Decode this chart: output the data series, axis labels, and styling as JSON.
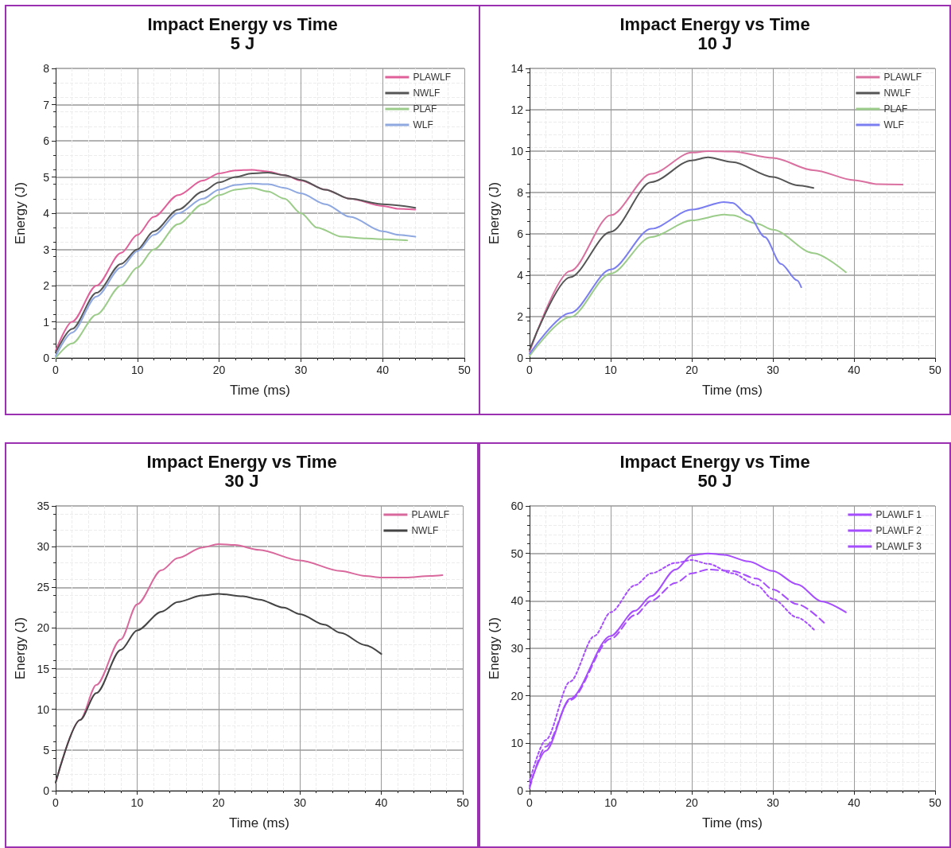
{
  "chart_data": [
    {
      "type": "line",
      "title": "Impact Energy vs Time",
      "subtitle": "5 J",
      "xlabel": "Time (ms)",
      "ylabel": "Energy (J)",
      "xlim": [
        0,
        50
      ],
      "xticks": [
        0,
        10,
        20,
        30,
        40,
        50
      ],
      "ylim": [
        0,
        8
      ],
      "yticks": [
        0,
        1,
        2,
        3,
        4,
        5,
        6,
        7,
        8
      ],
      "grid": true,
      "legend": "top right",
      "marker": "none",
      "series": [
        {
          "name": "PLAWLF",
          "color": "#e0609a",
          "x": [
            0,
            2,
            5,
            8,
            10,
            12,
            15,
            18,
            20,
            22,
            24,
            26,
            28,
            30,
            33,
            36,
            40,
            42,
            44
          ],
          "values": [
            0.2,
            1.0,
            2.0,
            2.9,
            3.4,
            3.9,
            4.5,
            4.9,
            5.1,
            5.18,
            5.2,
            5.15,
            5.05,
            4.9,
            4.65,
            4.4,
            4.2,
            4.12,
            4.1
          ]
        },
        {
          "name": "NWLF",
          "color": "#555555",
          "x": [
            0,
            2,
            5,
            8,
            10,
            12,
            15,
            18,
            20,
            22,
            24,
            26,
            28,
            30,
            33,
            36,
            40,
            44
          ],
          "values": [
            0.15,
            0.8,
            1.8,
            2.6,
            3.0,
            3.5,
            4.1,
            4.6,
            4.85,
            5.0,
            5.1,
            5.12,
            5.05,
            4.92,
            4.65,
            4.4,
            4.25,
            4.15
          ]
        },
        {
          "name": "PLAF",
          "color": "#9ccc8a",
          "x": [
            0,
            2,
            5,
            8,
            10,
            12,
            15,
            18,
            20,
            22,
            24,
            26,
            28,
            30,
            32,
            35,
            38,
            40,
            43
          ],
          "values": [
            0.0,
            0.4,
            1.2,
            2.0,
            2.5,
            3.0,
            3.7,
            4.25,
            4.5,
            4.65,
            4.7,
            4.6,
            4.4,
            4.0,
            3.6,
            3.35,
            3.3,
            3.28,
            3.25
          ]
        },
        {
          "name": "WLF",
          "color": "#8fa8e0",
          "x": [
            0,
            2,
            5,
            8,
            10,
            12,
            15,
            18,
            20,
            22,
            24,
            26,
            28,
            30,
            33,
            36,
            40,
            42,
            44
          ],
          "values": [
            0.05,
            0.7,
            1.7,
            2.5,
            2.95,
            3.4,
            4.0,
            4.4,
            4.65,
            4.78,
            4.82,
            4.8,
            4.7,
            4.55,
            4.25,
            3.9,
            3.5,
            3.4,
            3.35
          ]
        }
      ]
    },
    {
      "type": "line",
      "title": "Impact Energy vs Time",
      "subtitle": "10 J",
      "xlabel": "Time (ms)",
      "ylabel": "Energy (J)",
      "xlim": [
        0,
        50
      ],
      "xticks": [
        0,
        10,
        20,
        30,
        40,
        50
      ],
      "ylim": [
        0,
        14
      ],
      "yticks": [
        0,
        2,
        4,
        6,
        8,
        10,
        12,
        14
      ],
      "grid": true,
      "legend": "top right",
      "marker": "none",
      "series": [
        {
          "name": "PLAWLF",
          "color": "#d9709f",
          "x": [
            0,
            5,
            10,
            15,
            20,
            22,
            25,
            30,
            35,
            40,
            43,
            46
          ],
          "values": [
            0.3,
            4.2,
            6.9,
            8.9,
            9.93,
            10.0,
            9.98,
            9.67,
            9.08,
            8.6,
            8.4,
            8.38
          ]
        },
        {
          "name": "NWLF",
          "color": "#555555",
          "x": [
            0,
            5,
            10,
            15,
            20,
            22,
            25,
            30,
            33,
            35
          ],
          "values": [
            0.4,
            3.9,
            6.1,
            8.5,
            9.55,
            9.7,
            9.47,
            8.75,
            8.35,
            8.22
          ]
        },
        {
          "name": "PLAF",
          "color": "#9ccc8a",
          "x": [
            0,
            5,
            10,
            15,
            20,
            24,
            25,
            28,
            30,
            35,
            39
          ],
          "values": [
            0.1,
            1.97,
            4.08,
            5.85,
            6.65,
            6.93,
            6.9,
            6.5,
            6.2,
            5.07,
            4.14
          ]
        },
        {
          "name": "WLF",
          "color": "#7a7ef0",
          "x": [
            0,
            5,
            10,
            15,
            20,
            24,
            25,
            27,
            29,
            31,
            33,
            33.5
          ],
          "values": [
            0.2,
            2.17,
            4.28,
            6.25,
            7.17,
            7.54,
            7.5,
            6.9,
            5.85,
            4.55,
            3.75,
            3.42
          ]
        }
      ]
    },
    {
      "type": "line",
      "title": "Impact Energy vs Time",
      "subtitle": "30 J",
      "xlabel": "Time (ms)",
      "ylabel": "Energy (J)",
      "xlim": [
        0,
        50
      ],
      "xticks": [
        0,
        10,
        20,
        30,
        40,
        50
      ],
      "ylim": [
        0,
        35
      ],
      "yticks": [
        0,
        5,
        10,
        15,
        20,
        25,
        30,
        35
      ],
      "grid": true,
      "legend": "top right",
      "marker": "none",
      "series": [
        {
          "name": "PLAWLF",
          "color": "#d9689c",
          "x": [
            0,
            3,
            5,
            8,
            10,
            13,
            15,
            18,
            20,
            22,
            25,
            30,
            35,
            38,
            40,
            43,
            46,
            47.5
          ],
          "values": [
            1.0,
            8.7,
            13,
            18.6,
            22.9,
            27.1,
            28.6,
            29.9,
            30.3,
            30.2,
            29.6,
            28.3,
            27,
            26.4,
            26.2,
            26.2,
            26.4,
            26.5
          ]
        },
        {
          "name": "NWLF",
          "color": "#444444",
          "x": [
            0,
            3,
            5,
            8,
            10,
            13,
            15,
            18,
            20,
            23,
            25,
            28,
            30,
            33,
            35,
            38,
            40
          ],
          "values": [
            1.0,
            8.7,
            12,
            17.3,
            19.7,
            22,
            23.2,
            24,
            24.2,
            23.9,
            23.5,
            22.5,
            21.7,
            20.4,
            19.4,
            17.9,
            16.8
          ]
        }
      ]
    },
    {
      "type": "line",
      "title": "Impact Energy vs Time",
      "subtitle": "50 J",
      "xlabel": "Time (ms)",
      "ylabel": "Energy (J)",
      "xlim": [
        0,
        50
      ],
      "xticks": [
        0,
        10,
        20,
        30,
        40,
        50
      ],
      "ylim": [
        0,
        60
      ],
      "yticks": [
        0,
        10,
        20,
        30,
        40,
        50,
        60
      ],
      "grid": true,
      "legend": "top right",
      "marker": "none",
      "series": [
        {
          "name": "PLAWLF 1",
          "color": "#a64dff",
          "line_style": "solid",
          "x": [
            0,
            2,
            5,
            10,
            13,
            15,
            18,
            20,
            22,
            24,
            27,
            30,
            33,
            36,
            39
          ],
          "values": [
            1.0,
            8.4,
            19.4,
            32.6,
            37.9,
            41,
            46.6,
            49.6,
            50,
            49.7,
            48.3,
            46.3,
            43.5,
            39.9,
            37.6
          ]
        },
        {
          "name": "PLAWLF 2",
          "color": "#a64dff",
          "line_style": "dashed",
          "x": [
            0,
            2,
            5,
            10,
            13,
            15,
            18,
            20,
            22,
            25,
            28,
            30,
            33,
            36.3
          ],
          "values": [
            0.5,
            9.3,
            19.1,
            32,
            37,
            40,
            43.8,
            45.8,
            46.6,
            46.3,
            44.7,
            42.4,
            39.3,
            35.4
          ]
        },
        {
          "name": "PLAWLF 3",
          "color": "#a64dff",
          "line_style": "dotted",
          "x": [
            0,
            2,
            5,
            8,
            10,
            13,
            15,
            18,
            20,
            22,
            25,
            28,
            30,
            33,
            35.2
          ],
          "values": [
            2.0,
            10.7,
            23,
            32.6,
            37.6,
            43.3,
            45.8,
            48,
            48.6,
            47.8,
            45.8,
            43.3,
            40.4,
            36.5,
            33.7
          ]
        }
      ]
    }
  ]
}
